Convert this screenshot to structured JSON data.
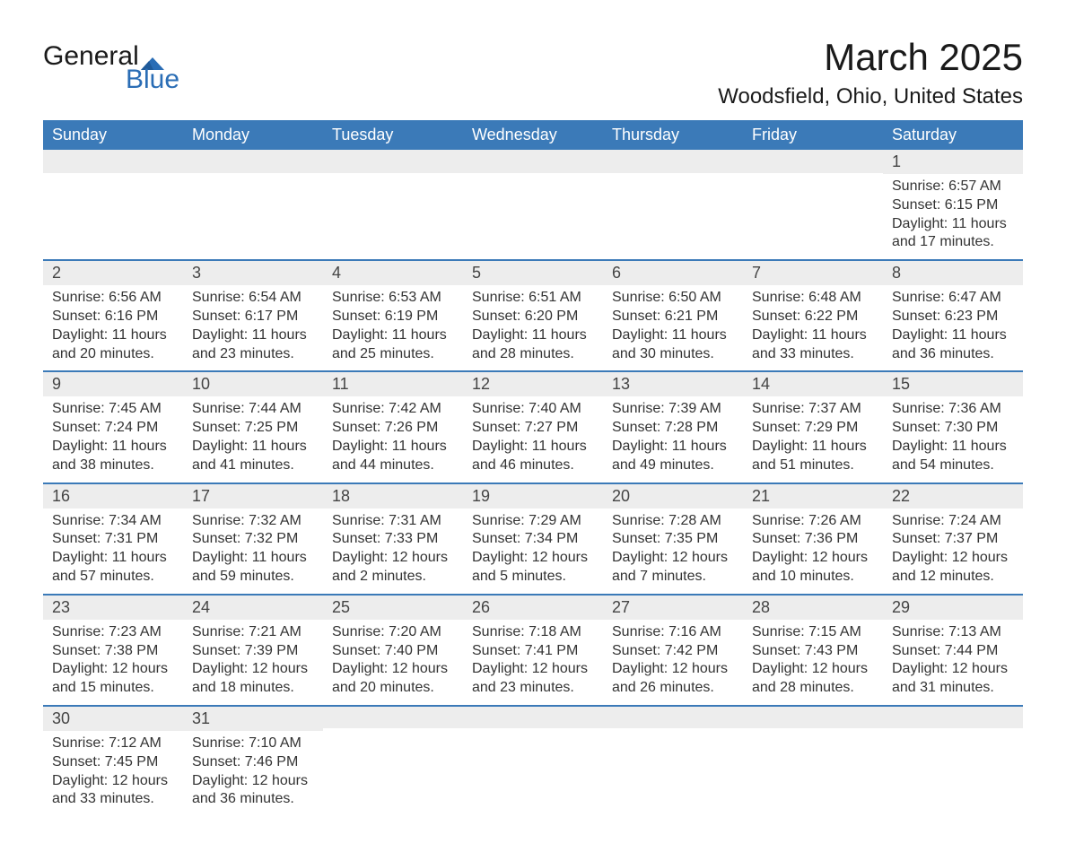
{
  "brand": {
    "top": "General",
    "bottom": "Blue",
    "flag_color": "#2a6db5"
  },
  "title": "March 2025",
  "location": "Woodsfield, Ohio, United States",
  "day_headers": [
    "Sunday",
    "Monday",
    "Tuesday",
    "Wednesday",
    "Thursday",
    "Friday",
    "Saturday"
  ],
  "colors": {
    "header_bg": "#3b7ab8",
    "header_text": "#ffffff",
    "strip_bg": "#ededed",
    "strip_border": "#3b7ab8",
    "body_text": "#333333",
    "background": "#ffffff"
  },
  "typography": {
    "title_fontsize": 42,
    "location_fontsize": 24,
    "header_fontsize": 18,
    "daynum_fontsize": 18,
    "body_fontsize": 16
  },
  "layout": {
    "columns": 7,
    "rows": 6,
    "first_day_column_index": 6
  },
  "weeks": [
    [
      null,
      null,
      null,
      null,
      null,
      null,
      {
        "n": "1",
        "sr": "Sunrise: 6:57 AM",
        "ss": "Sunset: 6:15 PM",
        "d1": "Daylight: 11 hours",
        "d2": "and 17 minutes."
      }
    ],
    [
      {
        "n": "2",
        "sr": "Sunrise: 6:56 AM",
        "ss": "Sunset: 6:16 PM",
        "d1": "Daylight: 11 hours",
        "d2": "and 20 minutes."
      },
      {
        "n": "3",
        "sr": "Sunrise: 6:54 AM",
        "ss": "Sunset: 6:17 PM",
        "d1": "Daylight: 11 hours",
        "d2": "and 23 minutes."
      },
      {
        "n": "4",
        "sr": "Sunrise: 6:53 AM",
        "ss": "Sunset: 6:19 PM",
        "d1": "Daylight: 11 hours",
        "d2": "and 25 minutes."
      },
      {
        "n": "5",
        "sr": "Sunrise: 6:51 AM",
        "ss": "Sunset: 6:20 PM",
        "d1": "Daylight: 11 hours",
        "d2": "and 28 minutes."
      },
      {
        "n": "6",
        "sr": "Sunrise: 6:50 AM",
        "ss": "Sunset: 6:21 PM",
        "d1": "Daylight: 11 hours",
        "d2": "and 30 minutes."
      },
      {
        "n": "7",
        "sr": "Sunrise: 6:48 AM",
        "ss": "Sunset: 6:22 PM",
        "d1": "Daylight: 11 hours",
        "d2": "and 33 minutes."
      },
      {
        "n": "8",
        "sr": "Sunrise: 6:47 AM",
        "ss": "Sunset: 6:23 PM",
        "d1": "Daylight: 11 hours",
        "d2": "and 36 minutes."
      }
    ],
    [
      {
        "n": "9",
        "sr": "Sunrise: 7:45 AM",
        "ss": "Sunset: 7:24 PM",
        "d1": "Daylight: 11 hours",
        "d2": "and 38 minutes."
      },
      {
        "n": "10",
        "sr": "Sunrise: 7:44 AM",
        "ss": "Sunset: 7:25 PM",
        "d1": "Daylight: 11 hours",
        "d2": "and 41 minutes."
      },
      {
        "n": "11",
        "sr": "Sunrise: 7:42 AM",
        "ss": "Sunset: 7:26 PM",
        "d1": "Daylight: 11 hours",
        "d2": "and 44 minutes."
      },
      {
        "n": "12",
        "sr": "Sunrise: 7:40 AM",
        "ss": "Sunset: 7:27 PM",
        "d1": "Daylight: 11 hours",
        "d2": "and 46 minutes."
      },
      {
        "n": "13",
        "sr": "Sunrise: 7:39 AM",
        "ss": "Sunset: 7:28 PM",
        "d1": "Daylight: 11 hours",
        "d2": "and 49 minutes."
      },
      {
        "n": "14",
        "sr": "Sunrise: 7:37 AM",
        "ss": "Sunset: 7:29 PM",
        "d1": "Daylight: 11 hours",
        "d2": "and 51 minutes."
      },
      {
        "n": "15",
        "sr": "Sunrise: 7:36 AM",
        "ss": "Sunset: 7:30 PM",
        "d1": "Daylight: 11 hours",
        "d2": "and 54 minutes."
      }
    ],
    [
      {
        "n": "16",
        "sr": "Sunrise: 7:34 AM",
        "ss": "Sunset: 7:31 PM",
        "d1": "Daylight: 11 hours",
        "d2": "and 57 minutes."
      },
      {
        "n": "17",
        "sr": "Sunrise: 7:32 AM",
        "ss": "Sunset: 7:32 PM",
        "d1": "Daylight: 11 hours",
        "d2": "and 59 minutes."
      },
      {
        "n": "18",
        "sr": "Sunrise: 7:31 AM",
        "ss": "Sunset: 7:33 PM",
        "d1": "Daylight: 12 hours",
        "d2": "and 2 minutes."
      },
      {
        "n": "19",
        "sr": "Sunrise: 7:29 AM",
        "ss": "Sunset: 7:34 PM",
        "d1": "Daylight: 12 hours",
        "d2": "and 5 minutes."
      },
      {
        "n": "20",
        "sr": "Sunrise: 7:28 AM",
        "ss": "Sunset: 7:35 PM",
        "d1": "Daylight: 12 hours",
        "d2": "and 7 minutes."
      },
      {
        "n": "21",
        "sr": "Sunrise: 7:26 AM",
        "ss": "Sunset: 7:36 PM",
        "d1": "Daylight: 12 hours",
        "d2": "and 10 minutes."
      },
      {
        "n": "22",
        "sr": "Sunrise: 7:24 AM",
        "ss": "Sunset: 7:37 PM",
        "d1": "Daylight: 12 hours",
        "d2": "and 12 minutes."
      }
    ],
    [
      {
        "n": "23",
        "sr": "Sunrise: 7:23 AM",
        "ss": "Sunset: 7:38 PM",
        "d1": "Daylight: 12 hours",
        "d2": "and 15 minutes."
      },
      {
        "n": "24",
        "sr": "Sunrise: 7:21 AM",
        "ss": "Sunset: 7:39 PM",
        "d1": "Daylight: 12 hours",
        "d2": "and 18 minutes."
      },
      {
        "n": "25",
        "sr": "Sunrise: 7:20 AM",
        "ss": "Sunset: 7:40 PM",
        "d1": "Daylight: 12 hours",
        "d2": "and 20 minutes."
      },
      {
        "n": "26",
        "sr": "Sunrise: 7:18 AM",
        "ss": "Sunset: 7:41 PM",
        "d1": "Daylight: 12 hours",
        "d2": "and 23 minutes."
      },
      {
        "n": "27",
        "sr": "Sunrise: 7:16 AM",
        "ss": "Sunset: 7:42 PM",
        "d1": "Daylight: 12 hours",
        "d2": "and 26 minutes."
      },
      {
        "n": "28",
        "sr": "Sunrise: 7:15 AM",
        "ss": "Sunset: 7:43 PM",
        "d1": "Daylight: 12 hours",
        "d2": "and 28 minutes."
      },
      {
        "n": "29",
        "sr": "Sunrise: 7:13 AM",
        "ss": "Sunset: 7:44 PM",
        "d1": "Daylight: 12 hours",
        "d2": "and 31 minutes."
      }
    ],
    [
      {
        "n": "30",
        "sr": "Sunrise: 7:12 AM",
        "ss": "Sunset: 7:45 PM",
        "d1": "Daylight: 12 hours",
        "d2": "and 33 minutes."
      },
      {
        "n": "31",
        "sr": "Sunrise: 7:10 AM",
        "ss": "Sunset: 7:46 PM",
        "d1": "Daylight: 12 hours",
        "d2": "and 36 minutes."
      },
      null,
      null,
      null,
      null,
      null
    ]
  ]
}
